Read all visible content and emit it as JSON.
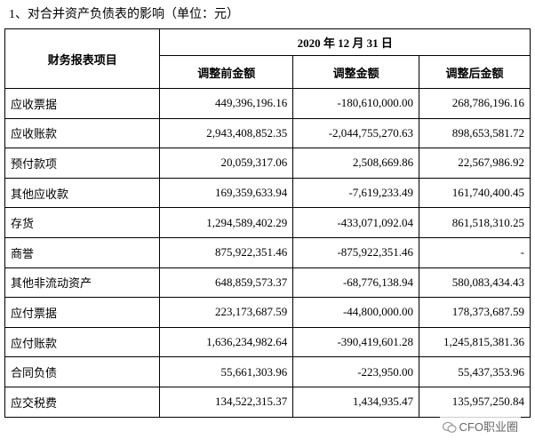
{
  "title": "1、对合并资产负债表的影响（单位：元）",
  "table": {
    "row_header": "财务报表项目",
    "group_header": "2020 年 12 月 31 日",
    "columns": [
      "调整前金额",
      "调整金额",
      "调整后金额"
    ],
    "rows": [
      [
        "应收票据",
        "449,396,196.16",
        "-180,610,000.00",
        "268,786,196.16"
      ],
      [
        "应收账款",
        "2,943,408,852.35",
        "-2,044,755,270.63",
        "898,653,581.72"
      ],
      [
        "预付款项",
        "20,059,317.06",
        "2,508,669.86",
        "22,567,986.92"
      ],
      [
        "其他应收款",
        "169,359,633.94",
        "-7,619,233.49",
        "161,740,400.45"
      ],
      [
        "存货",
        "1,294,589,402.29",
        "-433,071,092.04",
        "861,518,310.25"
      ],
      [
        "商誉",
        "875,922,351.46",
        "-875,922,351.46",
        "-"
      ],
      [
        "其他非流动资产",
        "648,859,573.37",
        "-68,776,138.94",
        "580,083,434.43"
      ],
      [
        "应付票据",
        "223,173,687.59",
        "-44,800,000.00",
        "178,373,687.59"
      ],
      [
        "应付账款",
        "1,636,234,982.64",
        "-390,419,601.28",
        "1,245,815,381.36"
      ],
      [
        "合同负债",
        "55,661,303.96",
        "-223,950.00",
        "55,437,353.96"
      ],
      [
        "应交税费",
        "134,522,315.37",
        "1,434,935.47",
        "135,957,250.84"
      ]
    ]
  },
  "watermark": "CFO职业圈"
}
